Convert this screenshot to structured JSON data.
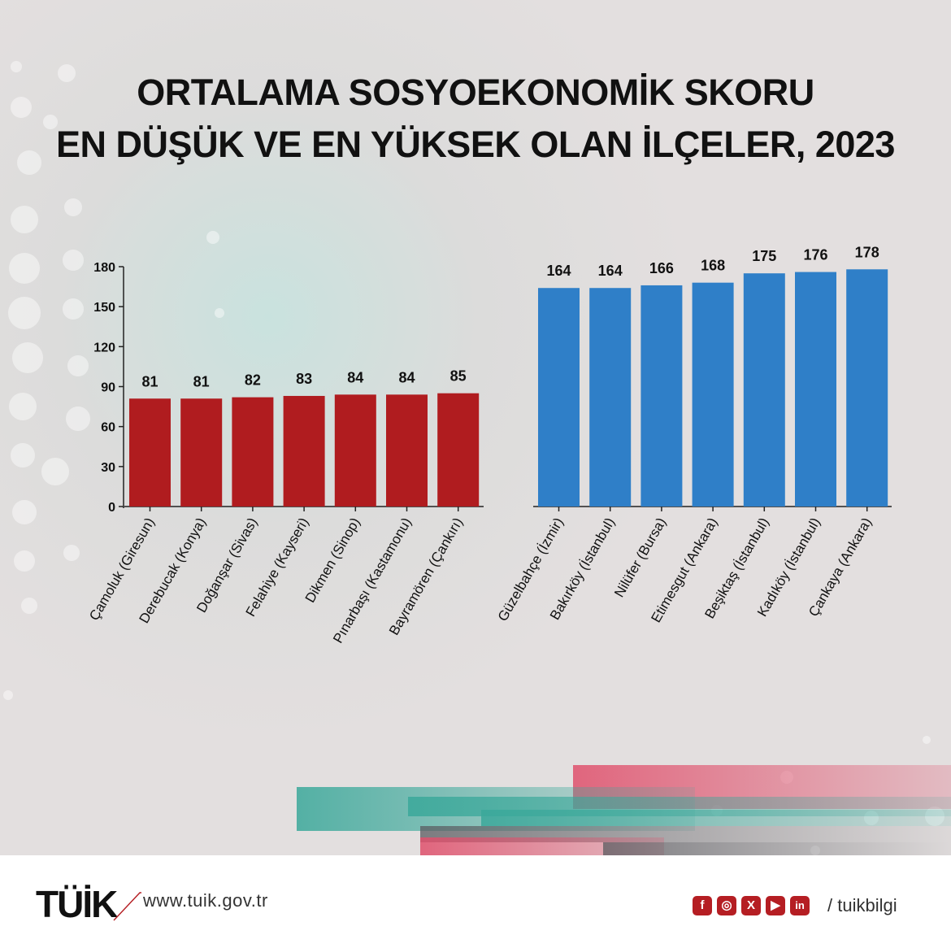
{
  "title_lines": [
    "ORTALAMA SOSYOEKONOMİK SKORU",
    "EN DÜŞÜK VE EN YÜKSEK OLAN İLÇELER, 2023"
  ],
  "colors": {
    "low": "#b01c1f",
    "high": "#2f7fc8",
    "footer_accent": "#b51e23"
  },
  "chart_data": [
    {
      "type": "bar",
      "title": "",
      "xlabel": "",
      "ylabel": "",
      "ylim": [
        0,
        180
      ],
      "yticks": [
        0,
        30,
        60,
        90,
        120,
        150,
        180
      ],
      "categories": [
        "Çamoluk (Giresun)",
        "Derebucak (Konya)",
        "Doğanşar (Sivas)",
        "Felahiye (Kayseri)",
        "Dikmen (Sinop)",
        "Pınarbaşı (Kastamonu)",
        "Bayramören (Çankırı)"
      ],
      "values": [
        81,
        81,
        82,
        83,
        84,
        84,
        85
      ],
      "color": "#b01c1f",
      "data_labels": true,
      "grid": false
    },
    {
      "type": "bar",
      "title": "",
      "xlabel": "",
      "ylabel": "",
      "ylim": [
        0,
        180
      ],
      "categories": [
        "Güzelbahçe (İzmir)",
        "Bakırköy (İstanbul)",
        "Nilüfer (Bursa)",
        "Etimesgut (Ankara)",
        "Beşiktaş (İstanbul)",
        "Kadıköy (İstanbul)",
        "Çankaya (Ankara)"
      ],
      "values": [
        164,
        164,
        166,
        168,
        175,
        176,
        178
      ],
      "color": "#2f7fc8",
      "data_labels": true,
      "grid": false
    }
  ],
  "footer": {
    "logo_text": "TÜİK",
    "url": "www.tuik.gov.tr",
    "social_icons": [
      "facebook-icon",
      "instagram-icon",
      "x-icon",
      "youtube-icon",
      "linkedin-icon"
    ],
    "social_glyphs": [
      "f",
      "◎",
      "X",
      "▶",
      "in"
    ],
    "handle": "/ tuikbilgi"
  }
}
